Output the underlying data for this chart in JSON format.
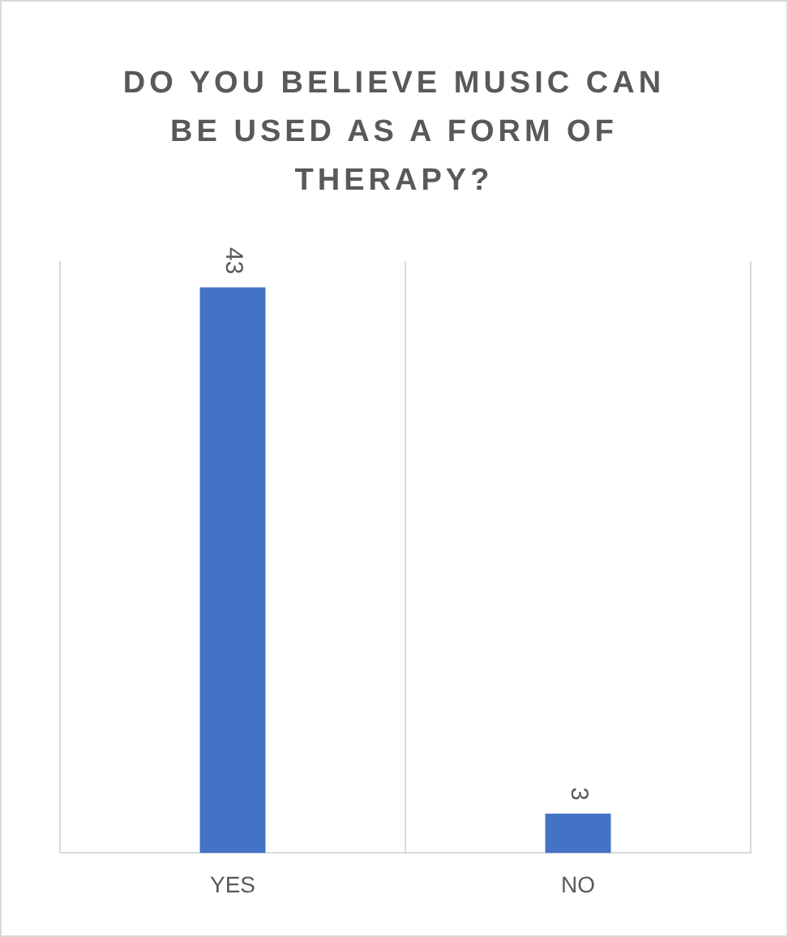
{
  "chart_data": {
    "type": "bar",
    "title": "DO YOU BELIEVE MUSIC CAN BE USED AS A FORM OF THERAPY?",
    "categories": [
      "YES",
      "NO"
    ],
    "values": [
      43,
      3
    ],
    "color": "#4472c4",
    "data_labels": true,
    "grid": "x"
  }
}
